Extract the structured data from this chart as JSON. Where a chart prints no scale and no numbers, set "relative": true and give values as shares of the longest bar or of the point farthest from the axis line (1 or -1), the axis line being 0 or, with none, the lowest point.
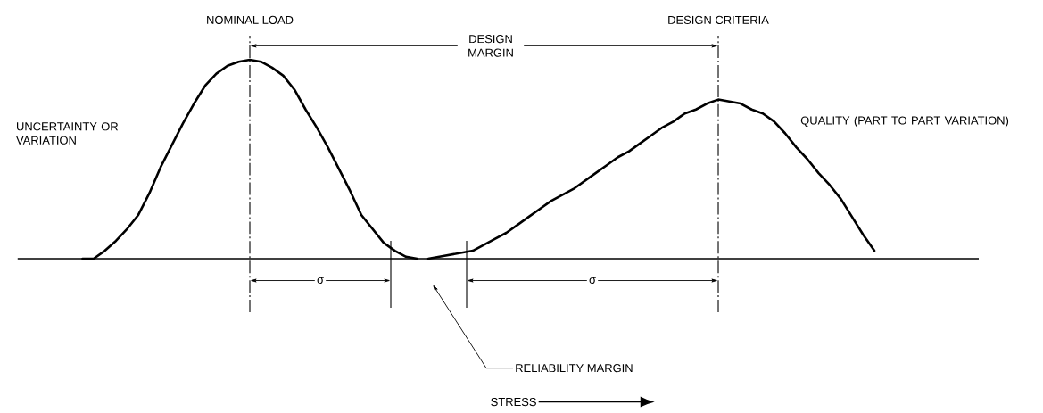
{
  "chart_data": {
    "type": "line",
    "relative": true,
    "marker": "none",
    "categories": [
      null,
      null,
      null,
      null,
      null,
      null,
      null,
      null,
      null,
      null,
      null,
      null,
      null,
      null,
      null,
      null,
      null,
      null,
      null,
      null,
      null,
      null,
      null,
      null,
      null,
      null,
      null,
      null,
      null,
      null,
      null,
      null,
      null,
      null,
      null,
      null,
      null,
      null,
      null,
      null,
      null,
      null,
      null,
      null,
      null,
      null,
      null,
      null,
      null,
      null,
      null,
      null,
      null,
      null,
      null,
      null,
      null,
      null,
      null,
      null,
      null,
      null,
      null,
      null,
      null,
      null,
      null,
      null,
      null,
      null,
      null,
      null,
      null
    ],
    "series": [
      {
        "color": "#000000",
        "values": [
          null,
          0,
          0,
          0.04,
          0.09,
          0.15,
          0.22,
          0.33,
          0.46,
          0.57,
          0.68,
          0.78,
          0.87,
          0.93,
          0.97,
          0.99,
          1,
          0.99,
          0.96,
          0.92,
          0.85,
          0.75,
          0.66,
          0.56,
          0.45,
          0.34,
          0.22,
          0.15,
          0.08,
          0.04,
          0.01,
          0,
          null,
          null,
          null,
          null,
          null,
          null,
          null,
          null,
          null,
          null,
          null,
          null,
          null,
          null,
          null,
          null,
          null,
          null,
          null,
          null,
          null,
          null,
          null,
          null,
          null,
          null,
          null,
          null,
          null,
          null,
          null,
          null,
          null,
          null,
          null,
          null,
          null,
          null,
          null,
          null,
          null
        ]
      },
      {
        "color": "#000000",
        "values": [
          null,
          null,
          null,
          null,
          null,
          null,
          null,
          null,
          null,
          null,
          null,
          null,
          null,
          null,
          null,
          null,
          null,
          null,
          null,
          null,
          null,
          null,
          null,
          null,
          null,
          null,
          null,
          null,
          null,
          null,
          null,
          null,
          0,
          0.01,
          0.02,
          0.03,
          0.04,
          0.07,
          0.1,
          0.13,
          0.17,
          0.21,
          0.25,
          0.29,
          0.32,
          0.35,
          0.39,
          0.43,
          0.47,
          0.51,
          0.54,
          0.58,
          0.62,
          0.66,
          0.69,
          0.73,
          0.75,
          0.78,
          0.8,
          0.79,
          0.78,
          0.75,
          0.73,
          0.69,
          0.63,
          0.56,
          0.5,
          0.43,
          0.37,
          0.3,
          0.21,
          0.12,
          0.04
        ]
      }
    ],
    "annotations": [
      "NOMINAL LOAD",
      "DESIGN CRITERIA",
      "DESIGN MARGIN",
      "σ",
      "σ",
      "UNCERTAINTY OR VARIATION",
      "QUALITY (PART TO PART VARIATION)",
      "RELIABILITY MARGIN",
      "STRESS"
    ]
  }
}
